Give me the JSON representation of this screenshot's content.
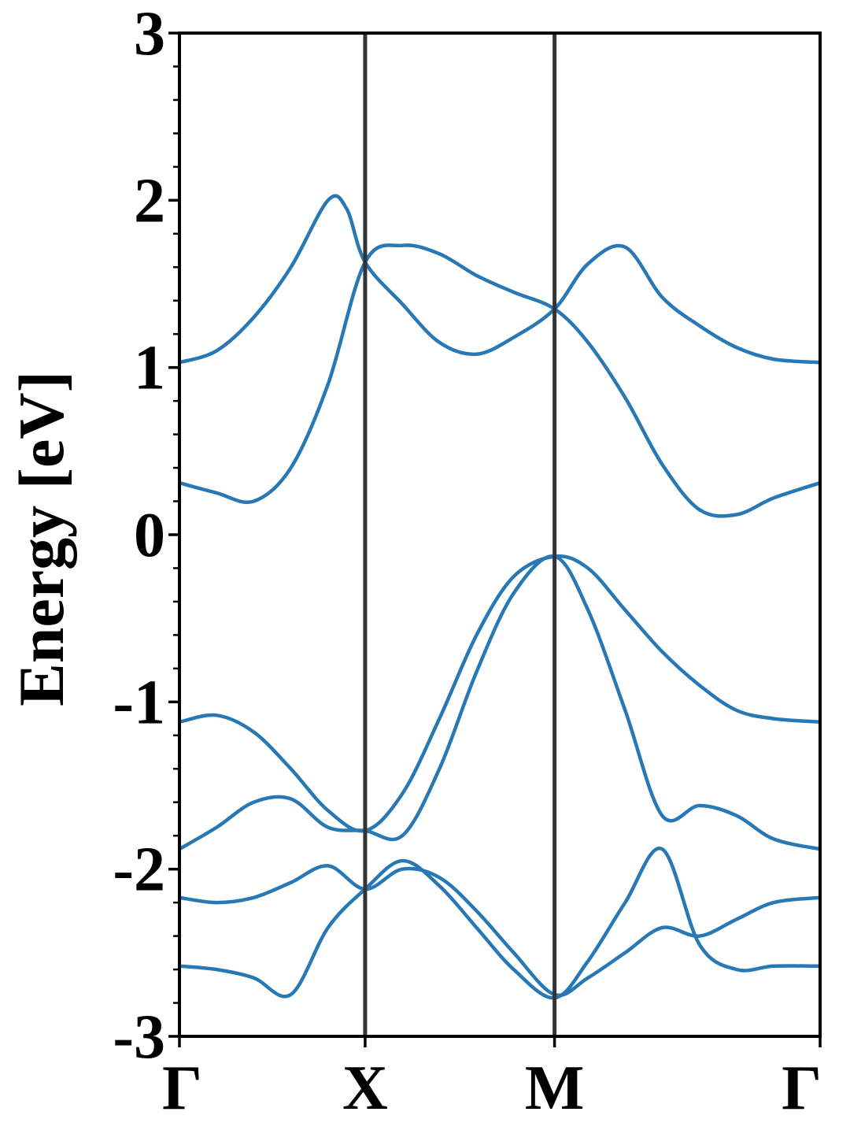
{
  "chart_data": {
    "type": "line",
    "title": "",
    "xlabel": "",
    "ylabel": "Energy [eV]",
    "ylim": [
      -3,
      3
    ],
    "xlim": [
      0,
      3.45
    ],
    "grid": false,
    "legend": "none",
    "colors": {
      "band": "#2878b5",
      "kpath_line": "#333333",
      "axes": "#000000"
    },
    "y_ticks": [
      {
        "value": 3,
        "label": "3"
      },
      {
        "value": 2,
        "label": "2"
      },
      {
        "value": 1,
        "label": "1"
      },
      {
        "value": 0,
        "label": "0"
      },
      {
        "value": -1,
        "label": "-1"
      },
      {
        "value": -2,
        "label": "-2"
      },
      {
        "value": -3,
        "label": "-3"
      }
    ],
    "k_points": [
      {
        "label": "Γ",
        "x": 0
      },
      {
        "label": "X",
        "x": 1.0
      },
      {
        "label": "M",
        "x": 2.02
      },
      {
        "label": "Γ",
        "x": 3.45
      }
    ],
    "series": [
      {
        "points": [
          [
            0,
            1.03
          ],
          [
            0.2,
            1.1
          ],
          [
            0.4,
            1.3
          ],
          [
            0.6,
            1.6
          ],
          [
            0.8,
            2.0
          ],
          [
            0.9,
            1.95
          ],
          [
            1.0,
            1.63
          ],
          [
            1.2,
            1.38
          ],
          [
            1.4,
            1.15
          ],
          [
            1.6,
            1.08
          ],
          [
            1.8,
            1.18
          ],
          [
            2.02,
            1.35
          ],
          [
            2.2,
            1.62
          ],
          [
            2.4,
            1.72
          ],
          [
            2.6,
            1.42
          ],
          [
            2.8,
            1.25
          ],
          [
            3.0,
            1.12
          ],
          [
            3.2,
            1.05
          ],
          [
            3.45,
            1.03
          ]
        ]
      },
      {
        "points": [
          [
            0,
            0.31
          ],
          [
            0.2,
            0.25
          ],
          [
            0.4,
            0.2
          ],
          [
            0.6,
            0.4
          ],
          [
            0.8,
            0.9
          ],
          [
            1.0,
            1.63
          ],
          [
            1.2,
            1.73
          ],
          [
            1.4,
            1.68
          ],
          [
            1.6,
            1.55
          ],
          [
            1.8,
            1.45
          ],
          [
            2.02,
            1.35
          ],
          [
            2.2,
            1.15
          ],
          [
            2.4,
            0.82
          ],
          [
            2.6,
            0.42
          ],
          [
            2.8,
            0.15
          ],
          [
            3.0,
            0.12
          ],
          [
            3.2,
            0.22
          ],
          [
            3.45,
            0.31
          ]
        ]
      },
      {
        "points": [
          [
            0,
            -1.12
          ],
          [
            0.2,
            -1.08
          ],
          [
            0.4,
            -1.18
          ],
          [
            0.6,
            -1.4
          ],
          [
            0.8,
            -1.65
          ],
          [
            1.0,
            -1.77
          ],
          [
            1.2,
            -1.55
          ],
          [
            1.4,
            -1.1
          ],
          [
            1.6,
            -0.6
          ],
          [
            1.8,
            -0.25
          ],
          [
            2.02,
            -0.13
          ],
          [
            2.2,
            -0.2
          ],
          [
            2.4,
            -0.45
          ],
          [
            2.6,
            -0.7
          ],
          [
            2.8,
            -0.9
          ],
          [
            3.0,
            -1.05
          ],
          [
            3.2,
            -1.1
          ],
          [
            3.45,
            -1.12
          ]
        ]
      },
      {
        "points": [
          [
            0,
            -1.88
          ],
          [
            0.2,
            -1.75
          ],
          [
            0.4,
            -1.6
          ],
          [
            0.6,
            -1.58
          ],
          [
            0.8,
            -1.75
          ],
          [
            1.0,
            -1.77
          ],
          [
            1.2,
            -1.8
          ],
          [
            1.4,
            -1.4
          ],
          [
            1.6,
            -0.82
          ],
          [
            1.8,
            -0.35
          ],
          [
            2.02,
            -0.13
          ],
          [
            2.2,
            -0.45
          ],
          [
            2.4,
            -1.05
          ],
          [
            2.6,
            -1.68
          ],
          [
            2.8,
            -1.62
          ],
          [
            3.0,
            -1.68
          ],
          [
            3.2,
            -1.82
          ],
          [
            3.45,
            -1.88
          ]
        ]
      },
      {
        "points": [
          [
            0,
            -2.17
          ],
          [
            0.2,
            -2.2
          ],
          [
            0.4,
            -2.17
          ],
          [
            0.6,
            -2.08
          ],
          [
            0.8,
            -1.98
          ],
          [
            1.0,
            -2.12
          ],
          [
            1.2,
            -2.0
          ],
          [
            1.4,
            -2.05
          ],
          [
            1.6,
            -2.25
          ],
          [
            1.8,
            -2.5
          ],
          [
            2.02,
            -2.75
          ],
          [
            2.2,
            -2.65
          ],
          [
            2.4,
            -2.5
          ],
          [
            2.6,
            -2.35
          ],
          [
            2.8,
            -2.4
          ],
          [
            3.0,
            -2.3
          ],
          [
            3.2,
            -2.2
          ],
          [
            3.45,
            -2.17
          ]
        ]
      },
      {
        "points": [
          [
            0,
            -2.58
          ],
          [
            0.2,
            -2.6
          ],
          [
            0.4,
            -2.65
          ],
          [
            0.6,
            -2.75
          ],
          [
            0.8,
            -2.35
          ],
          [
            1.0,
            -2.12
          ],
          [
            1.2,
            -1.95
          ],
          [
            1.4,
            -2.1
          ],
          [
            1.6,
            -2.35
          ],
          [
            1.8,
            -2.6
          ],
          [
            2.02,
            -2.77
          ],
          [
            2.2,
            -2.55
          ],
          [
            2.4,
            -2.2
          ],
          [
            2.6,
            -1.88
          ],
          [
            2.8,
            -2.45
          ],
          [
            3.0,
            -2.6
          ],
          [
            3.2,
            -2.58
          ],
          [
            3.45,
            -2.58
          ]
        ]
      }
    ]
  }
}
